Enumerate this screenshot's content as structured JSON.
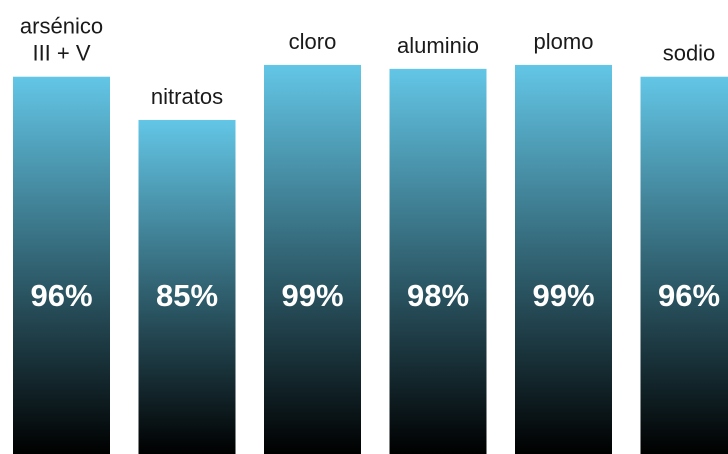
{
  "chart_data": {
    "type": "bar",
    "categories": [
      [
        "arsénico",
        "III + V"
      ],
      [
        "nitratos"
      ],
      [
        "cloro"
      ],
      [
        "aluminio"
      ],
      [
        "plomo"
      ],
      [
        "sodio"
      ]
    ],
    "values": [
      96,
      85,
      99,
      98,
      99,
      96
    ],
    "value_labels": [
      "96%",
      "85%",
      "99%",
      "98%",
      "99%",
      "96%"
    ],
    "ylim": [
      0,
      100
    ],
    "title": "",
    "xlabel": "",
    "ylabel": "",
    "grid": false,
    "legend": "none",
    "colors": {
      "bar_top": "#63c6e6",
      "bar_bottom": "#000000",
      "text": "#1a1a1a",
      "value_text": "#ffffff"
    }
  }
}
